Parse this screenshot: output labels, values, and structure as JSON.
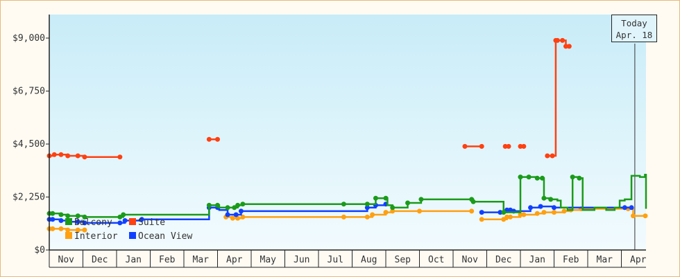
{
  "chart_data": {
    "type": "line",
    "step": true,
    "yticks": [
      {
        "value": 0,
        "label": "$0"
      },
      {
        "value": 2250,
        "label": "$2,250"
      },
      {
        "value": 4500,
        "label": "$4,500"
      },
      {
        "value": 6750,
        "label": "$6,750"
      },
      {
        "value": 9000,
        "label": "$9,000"
      }
    ],
    "ylim": [
      0,
      10000
    ],
    "xlim": [
      0,
      17.75
    ],
    "months": [
      "Nov",
      "Dec",
      "Jan",
      "Feb",
      "Mar",
      "Apr",
      "May",
      "Jun",
      "Jul",
      "Aug",
      "Sep",
      "Oct",
      "Nov",
      "Dec",
      "Jan",
      "Feb",
      "Mar",
      "Apr"
    ],
    "today": {
      "label_line1": "Today",
      "label_line2": "Apr. 18",
      "x": 17.4
    },
    "legend": [
      {
        "name": "Balcony",
        "color": "#1a9b1a"
      },
      {
        "name": "Suite",
        "color": "#ff4010"
      },
      {
        "name": "Interior",
        "color": "#ffa010"
      },
      {
        "name": "Ocean View",
        "color": "#1040ff"
      }
    ],
    "series": [
      {
        "name": "Suite",
        "color": "#ff4010",
        "segments": [
          [
            [
              0,
              4000
            ],
            [
              0.15,
              4050
            ],
            [
              0.35,
              4050
            ],
            [
              0.55,
              4000
            ],
            [
              0.85,
              4000
            ],
            [
              1.05,
              3950
            ],
            [
              2.1,
              3950
            ]
          ],
          [
            [
              4.75,
              4700
            ],
            [
              5.0,
              4700
            ]
          ],
          [
            [
              12.35,
              4400
            ],
            [
              12.85,
              4400
            ]
          ],
          [
            [
              13.55,
              4400
            ],
            [
              13.65,
              4400
            ]
          ],
          [
            [
              14.0,
              4400
            ],
            [
              14.1,
              4400
            ]
          ],
          [
            [
              14.8,
              4000
            ],
            [
              14.95,
              4000
            ],
            [
              15.05,
              4400
            ],
            [
              15.05,
              8900
            ],
            [
              15.3,
              8900
            ],
            [
              15.35,
              8650
            ],
            [
              15.45,
              8650
            ]
          ]
        ],
        "markers": [
          0,
          0.15,
          0.35,
          0.55,
          0.85,
          1.05,
          2.1,
          4.75,
          5.0,
          12.35,
          12.85,
          13.55,
          13.65,
          14.0,
          14.1,
          14.8,
          14.95,
          15.05,
          15.1,
          15.25,
          15.35,
          15.45
        ]
      },
      {
        "name": "Interior",
        "color": "#ffa010",
        "segments": [
          [
            [
              0,
              900
            ],
            [
              0.1,
              900
            ],
            [
              0.35,
              900
            ],
            [
              0.55,
              850
            ],
            [
              0.85,
              850
            ],
            [
              1.05,
              850
            ]
          ],
          [
            [
              5.25,
              1400
            ],
            [
              5.45,
              1350
            ],
            [
              5.6,
              1350
            ],
            [
              5.75,
              1400
            ],
            [
              8.75,
              1400
            ],
            [
              9.45,
              1400
            ],
            [
              9.6,
              1500
            ],
            [
              10.0,
              1600
            ],
            [
              10.2,
              1650
            ],
            [
              11.0,
              1650
            ],
            [
              12.55,
              1650
            ]
          ],
          [
            [
              12.85,
              1300
            ],
            [
              13.5,
              1300
            ],
            [
              13.6,
              1400
            ],
            [
              13.7,
              1400
            ],
            [
              14.0,
              1500
            ],
            [
              14.1,
              1500
            ],
            [
              14.5,
              1550
            ],
            [
              14.7,
              1600
            ],
            [
              15.0,
              1600
            ],
            [
              15.3,
              1650
            ],
            [
              15.5,
              1700
            ],
            [
              15.8,
              1750
            ],
            [
              17.2,
              1750
            ],
            [
              17.35,
              1450
            ],
            [
              17.75,
              1450
            ]
          ]
        ],
        "markers": [
          0,
          0.1,
          0.35,
          0.55,
          0.85,
          1.05,
          5.25,
          5.45,
          5.6,
          5.75,
          8.75,
          9.45,
          9.6,
          10.0,
          10.2,
          11.0,
          12.55,
          12.85,
          13.5,
          13.6,
          13.7,
          14.0,
          14.1,
          14.5,
          14.7,
          15.0,
          15.3,
          15.5,
          15.8,
          17.2,
          17.35,
          17.75
        ]
      },
      {
        "name": "Ocean View",
        "color": "#1040ff",
        "segments": [
          [
            [
              0,
              1300
            ],
            [
              0.1,
              1300
            ],
            [
              0.35,
              1250
            ],
            [
              0.55,
              1200
            ],
            [
              0.85,
              1200
            ],
            [
              1.05,
              1150
            ],
            [
              2.1,
              1150
            ],
            [
              2.25,
              1250
            ],
            [
              2.75,
              1300
            ],
            [
              4.7,
              1300
            ],
            [
              4.75,
              1800
            ],
            [
              5.0,
              1800
            ],
            [
              5.05,
              1700
            ],
            [
              5.25,
              1700
            ],
            [
              5.3,
              1500
            ],
            [
              5.55,
              1500
            ],
            [
              5.7,
              1650
            ],
            [
              8.75,
              1650
            ],
            [
              9.45,
              1800
            ],
            [
              9.7,
              1900
            ],
            [
              10.0,
              1950
            ]
          ],
          [
            [
              12.85,
              1600
            ],
            [
              13.4,
              1600
            ],
            [
              13.6,
              1700
            ],
            [
              13.7,
              1700
            ],
            [
              13.8,
              1650
            ],
            [
              14.0,
              1650
            ],
            [
              14.3,
              1800
            ],
            [
              14.6,
              1850
            ],
            [
              15.0,
              1800
            ],
            [
              15.2,
              1800
            ],
            [
              15.8,
              1800
            ],
            [
              17.1,
              1800
            ],
            [
              17.3,
              1800
            ]
          ]
        ],
        "markers": [
          0,
          0.1,
          0.35,
          0.55,
          0.85,
          1.05,
          2.1,
          2.25,
          2.75,
          4.75,
          5.0,
          5.3,
          5.55,
          5.7,
          9.45,
          9.7,
          10.0,
          12.85,
          13.4,
          13.6,
          13.7,
          13.8,
          14.3,
          14.6,
          15.0,
          17.1,
          17.3
        ]
      },
      {
        "name": "Balcony",
        "color": "#1a9b1a",
        "segments": [
          [
            [
              0,
              1550
            ],
            [
              0.1,
              1550
            ],
            [
              0.35,
              1500
            ],
            [
              0.55,
              1450
            ],
            [
              0.85,
              1450
            ],
            [
              1.05,
              1400
            ],
            [
              2.1,
              1400
            ],
            [
              2.2,
              1500
            ],
            [
              4.7,
              1500
            ],
            [
              4.75,
              1900
            ],
            [
              5.0,
              1900
            ],
            [
              5.05,
              1800
            ],
            [
              5.3,
              1800
            ],
            [
              5.5,
              1800
            ],
            [
              5.6,
              1900
            ],
            [
              5.75,
              1950
            ],
            [
              8.75,
              1950
            ],
            [
              9.45,
              1950
            ],
            [
              9.7,
              2200
            ],
            [
              10.0,
              2200
            ],
            [
              10.05,
              1900
            ],
            [
              10.2,
              1800
            ],
            [
              10.6,
              1800
            ],
            [
              10.65,
              2000
            ],
            [
              11.0,
              2000
            ],
            [
              11.05,
              2150
            ],
            [
              12.55,
              2150
            ],
            [
              12.6,
              2050
            ],
            [
              13.45,
              2050
            ],
            [
              13.5,
              1600
            ],
            [
              13.95,
              1600
            ],
            [
              14.0,
              3100
            ],
            [
              14.25,
              3100
            ],
            [
              14.5,
              3050
            ],
            [
              14.65,
              3050
            ],
            [
              14.7,
              2200
            ],
            [
              14.9,
              2150
            ],
            [
              15.1,
              2100
            ],
            [
              15.2,
              1800
            ],
            [
              15.35,
              1800
            ],
            [
              15.4,
              1700
            ],
            [
              15.55,
              3100
            ],
            [
              15.75,
              3050
            ],
            [
              15.85,
              1700
            ],
            [
              16.1,
              1700
            ],
            [
              16.2,
              1800
            ],
            [
              16.45,
              1800
            ],
            [
              16.55,
              1700
            ],
            [
              16.8,
              1800
            ],
            [
              16.95,
              2100
            ],
            [
              17.1,
              2150
            ],
            [
              17.3,
              3150
            ],
            [
              17.45,
              3150
            ],
            [
              17.55,
              3100
            ],
            [
              17.7,
              3200
            ],
            [
              17.85,
              3200
            ],
            [
              18.0,
              1750
            ],
            [
              19.0,
              1750
            ]
          ]
        ],
        "markers": [
          0,
          0.1,
          0.35,
          0.55,
          0.85,
          1.05,
          2.1,
          2.2,
          4.75,
          5.0,
          5.3,
          5.5,
          5.6,
          5.75,
          8.75,
          9.45,
          9.7,
          10.0,
          10.2,
          10.65,
          11.05,
          12.55,
          12.6,
          13.5,
          14.0,
          14.25,
          14.5,
          14.65,
          14.7,
          14.9,
          15.55,
          15.75
        ]
      }
    ]
  }
}
